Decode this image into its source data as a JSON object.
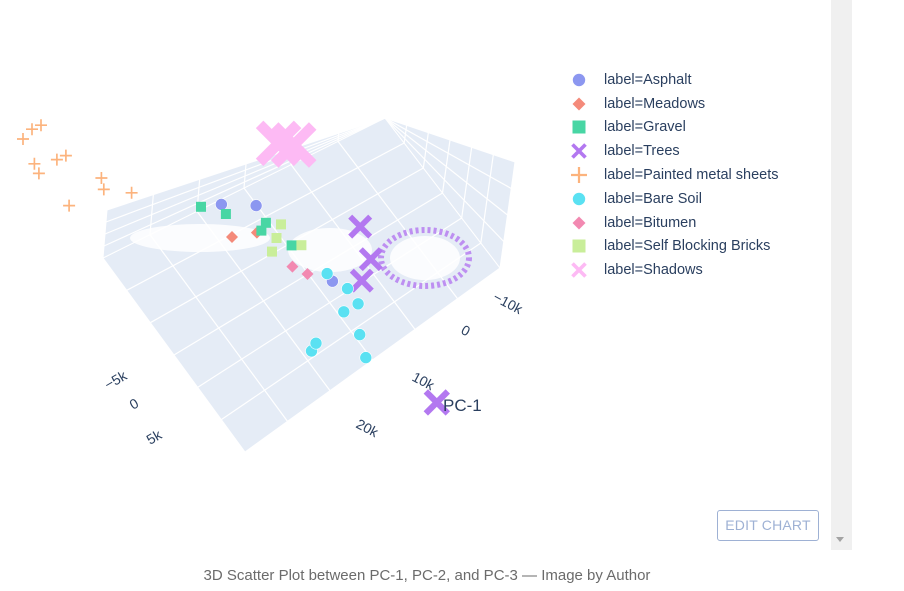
{
  "chart_data": {
    "type": "scatter3d",
    "title": "",
    "axes": {
      "x": {
        "label": "PC-1",
        "ticks": [
          "−10k",
          "0",
          "10k",
          "20k"
        ]
      },
      "y": {
        "label": "",
        "ticks": [
          "−5k",
          "0",
          "5k"
        ]
      },
      "z": {
        "label": "",
        "ticks": []
      }
    },
    "legend_position": "top-right",
    "series": [
      {
        "name": "label=Asphalt",
        "symbol": "circle",
        "color": "#8c97f0",
        "points": [
          [
            -1,
            7,
            4
          ],
          [
            -2,
            10,
            3
          ],
          [
            6,
            3,
            0
          ]
        ]
      },
      {
        "name": "label=Meadows",
        "symbol": "diamond",
        "color": "#f48a7a",
        "points": [
          [
            1,
            8,
            2
          ],
          [
            0,
            10,
            0
          ]
        ]
      },
      {
        "name": "label=Gravel",
        "symbol": "square",
        "color": "#48d6a4",
        "points": [
          [
            -1,
            6,
            1
          ],
          [
            0,
            7,
            1
          ],
          [
            2,
            5,
            1
          ],
          [
            -3,
            9,
            0
          ],
          [
            -4,
            11,
            0
          ]
        ]
      },
      {
        "name": "label=Trees",
        "symbol": "x",
        "color": "#b378f0",
        "points": [
          [
            2,
            -2,
            4
          ],
          [
            4,
            -2,
            1
          ],
          [
            22,
            1,
            0
          ],
          [
            6,
            0,
            0
          ]
        ]
      },
      {
        "name": "label=Painted metal sheets",
        "symbol": "cross",
        "color": "#fcb37d",
        "points": [
          [
            -4,
            28,
            8
          ],
          [
            -5,
            27,
            5
          ],
          [
            -8,
            27,
            7
          ],
          [
            -10,
            25,
            6
          ],
          [
            -9,
            23,
            2
          ],
          [
            -11,
            21,
            0
          ],
          [
            -8,
            19,
            0
          ],
          [
            -6,
            17,
            0
          ],
          [
            -12,
            23,
            4
          ],
          [
            -3,
            25,
            2
          ],
          [
            -2,
            22,
            6
          ]
        ]
      },
      {
        "name": "label=Bare Soil",
        "symbol": "circle",
        "color": "#5ae1f2",
        "points": [
          [
            15,
            10,
            0
          ],
          [
            14,
            9,
            0
          ],
          [
            16,
            5,
            0
          ],
          [
            13,
            4,
            0
          ],
          [
            10,
            4,
            0
          ],
          [
            9,
            2,
            0
          ],
          [
            7,
            2,
            0
          ],
          [
            5,
            3,
            0
          ]
        ]
      },
      {
        "name": "label=Bitumen",
        "symbol": "diamond",
        "color": "#f289b1",
        "points": [
          [
            5,
            5,
            0
          ],
          [
            4,
            6,
            0
          ]
        ]
      },
      {
        "name": "label=Self Blocking Bricks",
        "symbol": "square",
        "color": "#c9ee9a",
        "points": [
          [
            1,
            6,
            1
          ],
          [
            2,
            7,
            0
          ],
          [
            0,
            5,
            2
          ],
          [
            2,
            4,
            1
          ]
        ]
      },
      {
        "name": "label=Shadows",
        "symbol": "x",
        "color": "#fdbaf4",
        "points": [
          [
            -5,
            1,
            9
          ],
          [
            -6,
            2,
            8
          ]
        ]
      }
    ]
  },
  "ui": {
    "edit_chart_label": "EDIT CHART",
    "caption": "3D Scatter Plot between PC-1, PC-2, and PC-3 — Image by Author",
    "colors": {
      "background": "#ffffff",
      "scene": "#e5ecf6",
      "grid": "#ffffff",
      "text": "#2a3f5f"
    }
  }
}
